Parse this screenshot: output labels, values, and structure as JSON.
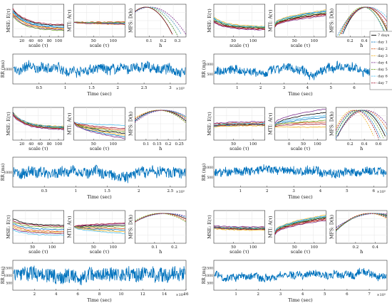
{
  "figure": {
    "legend": [
      "7 days",
      "day 1",
      "day 2",
      "day 3",
      "day 4",
      "day 5",
      "day 6",
      "day 7"
    ],
    "legend_colors": [
      "#000000",
      "#0072BD",
      "#D95319",
      "#EDB120",
      "#7E2F8E",
      "#77AC30",
      "#4DBEEE",
      "#A2142F"
    ],
    "rr_color": "#0072BD",
    "ylabels": {
      "mse": "MSE: E(τ)",
      "mti": "MTI: A(τ)",
      "mfs": "MFS: D(h)",
      "rr": "RR (ms)"
    },
    "xlabels": {
      "scale": "scale (τ)",
      "h": "h",
      "time": "Time (sec)"
    }
  },
  "chart_data": [
    {
      "panel": "top-left",
      "type": "line",
      "mse": {
        "xlim": [
          1,
          100
        ],
        "xticks": [
          "20",
          "40",
          "60",
          "80",
          "100"
        ],
        "y_start": [
          0.82,
          0.76,
          0.72,
          0.7,
          0.66,
          0.62,
          0.8,
          0.86
        ],
        "y_end": [
          0.35,
          0.3,
          0.27,
          0.25,
          0.22,
          0.2,
          0.32,
          0.38
        ]
      },
      "mti": {
        "xlim": [
          0,
          100
        ],
        "xticks": [
          "50",
          "100"
        ],
        "y_end": [
          0.43,
          0.4,
          0.46,
          0.38,
          0.42,
          0.44,
          0.41,
          0.39
        ]
      },
      "mfs": {
        "xlim": [
          0.05,
          0.38
        ],
        "xticks": [
          "0.1",
          "0.2",
          "0.3"
        ],
        "peak": [
          0.12,
          0.13,
          0.14,
          0.12,
          0.15,
          0.13,
          0.14,
          0.12
        ],
        "width": [
          0.09,
          0.1,
          0.11,
          0.09,
          0.12,
          0.1,
          0.11,
          0.09
        ],
        "dashed": true
      },
      "rr": {
        "xticks": [
          "0.5",
          "1",
          "1.5",
          "2",
          "2.5",
          "3"
        ],
        "xmax": 3.3,
        "exp": "×10⁵",
        "yticks": [
          "1000"
        ],
        "level": 0.5,
        "amp": 0.2
      }
    },
    {
      "panel": "top-right",
      "type": "line",
      "mse": {
        "xlim": [
          1,
          100
        ],
        "xticks": [
          "50",
          "100"
        ],
        "y_start": [
          0.5,
          0.56,
          0.46,
          0.6,
          0.44,
          0.52,
          0.58,
          0.48
        ],
        "y_end": [
          0.28,
          0.3,
          0.25,
          0.33,
          0.22,
          0.29,
          0.31,
          0.24
        ]
      },
      "mti": {
        "xlim": [
          0,
          100
        ],
        "xticks": [
          "50",
          "100"
        ],
        "y_start": [
          0.35,
          0.38,
          0.33,
          0.4,
          0.3,
          0.36,
          0.39,
          0.32
        ],
        "y_end": [
          0.72,
          0.78,
          0.68,
          0.82,
          0.65,
          0.75,
          0.8,
          0.7
        ]
      },
      "mfs": {
        "xlim": [
          0.1,
          0.65
        ],
        "xticks": [
          "0.2",
          "0.4",
          "0.6"
        ],
        "peak": [
          0.42,
          0.4,
          0.44,
          0.41,
          0.43,
          0.39,
          0.45,
          0.42
        ],
        "width": [
          0.13,
          0.12,
          0.15,
          0.14,
          0.16,
          0.13,
          0.17,
          0.14
        ],
        "dashed": true
      },
      "rr": {
        "xticks": [
          "1",
          "2",
          "3",
          "4",
          "5",
          "6",
          "7"
        ],
        "xmax": 7.4,
        "exp": "×10⁵",
        "yticks": [
          "1000",
          "500"
        ],
        "level": 0.45,
        "amp": 0.18
      }
    },
    {
      "panel": "middle-left",
      "type": "line",
      "mse": {
        "xlim": [
          1,
          100
        ],
        "xticks": [
          "20",
          "40",
          "60",
          "80",
          "100"
        ],
        "y_start": [
          0.85,
          0.8,
          0.78,
          0.82,
          0.75,
          0.8,
          0.83,
          0.79
        ],
        "y_end": [
          0.4,
          0.38,
          0.35,
          0.42,
          0.33,
          0.37,
          0.41,
          0.36
        ]
      },
      "mti": {
        "xlim": [
          0,
          100
        ],
        "xticks": [
          "50",
          "100"
        ],
        "y_start": [
          0.55,
          0.55,
          0.55,
          0.55,
          0.55,
          0.55,
          0.55,
          0.55
        ],
        "y_end": [
          0.2,
          0.1,
          0.3,
          0.15,
          0.05,
          0.25,
          0.45,
          0.35
        ]
      },
      "mfs": {
        "xlim": [
          0.04,
          0.28
        ],
        "xticks": [
          "0.1",
          "0.15",
          "0.2",
          "0.25"
        ],
        "peak": [
          0.16,
          0.17,
          0.15,
          0.16,
          0.18,
          0.15,
          0.17,
          0.16
        ],
        "width": [
          0.1,
          0.11,
          0.1,
          0.12,
          0.11,
          0.1,
          0.12,
          0.11
        ],
        "dashed": true
      },
      "rr": {
        "xticks": [
          "0.5",
          "1",
          "1.5",
          "2",
          "2.5"
        ],
        "xmax": 2.75,
        "exp": "×10⁵",
        "yticks": [
          "1000"
        ],
        "level": 0.5,
        "amp": 0.22
      }
    },
    {
      "panel": "middle-right",
      "type": "line",
      "mse": {
        "xlim": [
          1,
          100
        ],
        "xticks": [
          "50",
          "100"
        ],
        "y_start": [
          0.45,
          0.42,
          0.48,
          0.4,
          0.5,
          0.44,
          0.46,
          0.43
        ],
        "y_end": [
          0.5,
          0.46,
          0.53,
          0.44,
          0.56,
          0.48,
          0.51,
          0.47
        ]
      },
      "mti": {
        "xlim": [
          0,
          100
        ],
        "xticks": [
          "0",
          "50",
          "100"
        ],
        "y_start": [
          0.45,
          0.42,
          0.48,
          0.4,
          0.5,
          0.44,
          0.46,
          0.43
        ],
        "y_end": [
          0.85,
          0.7,
          0.55,
          0.4,
          0.95,
          0.6,
          0.75,
          0.5
        ]
      },
      "mfs": {
        "xlim": [
          0.05,
          0.65
        ],
        "xticks": [
          "0.2",
          "0.4",
          "0.6"
        ],
        "peak": [
          0.35,
          0.3,
          0.38,
          0.25,
          0.4,
          0.32,
          0.36,
          0.28
        ],
        "width": [
          0.15,
          0.14,
          0.17,
          0.13,
          0.18,
          0.15,
          0.16,
          0.14
        ],
        "dashed": true
      },
      "rr": {
        "xticks": [
          "1",
          "2",
          "3",
          "4",
          "5",
          "6"
        ],
        "xmax": 6.5,
        "exp": "×10⁵",
        "yticks": [
          "1000",
          "500"
        ],
        "level": 0.5,
        "amp": 0.18
      }
    },
    {
      "panel": "bottom-left",
      "type": "line",
      "mse": {
        "xlim": [
          1,
          100
        ],
        "xticks": [
          "50",
          "100"
        ],
        "y_start": [
          0.75,
          0.6,
          0.55,
          0.5,
          0.45,
          0.65,
          0.4,
          0.7
        ],
        "y_end": [
          0.55,
          0.42,
          0.36,
          0.32,
          0.3,
          0.48,
          0.25,
          0.52
        ]
      },
      "mti": {
        "xlim": [
          0,
          100
        ],
        "xticks": [
          "50",
          "100"
        ],
        "y_start": [
          0.5,
          0.5,
          0.5,
          0.5,
          0.5,
          0.5,
          0.5,
          0.5
        ],
        "y_end": [
          0.55,
          0.4,
          0.45,
          0.35,
          0.6,
          0.5,
          0.3,
          0.62
        ]
      },
      "mfs": {
        "xlim": [
          0.05,
          0.32
        ],
        "xticks": [
          "0.1",
          "0.2"
        ],
        "peak": [
          0.2,
          0.21,
          0.19,
          0.2,
          0.22,
          0.18,
          0.21,
          0.2
        ],
        "width": [
          0.14,
          0.15,
          0.13,
          0.14,
          0.16,
          0.13,
          0.15,
          0.14
        ],
        "dashed": true
      },
      "rr": {
        "xticks": [
          "2",
          "4",
          "6",
          "8",
          "10",
          "12",
          "14",
          "16"
        ],
        "xmax": 16,
        "exp": "×10⁴",
        "yticks": [
          "1500",
          "1000",
          "500"
        ],
        "level": 0.55,
        "amp": 0.3
      }
    },
    {
      "panel": "bottom-right",
      "type": "line",
      "mse": {
        "xlim": [
          1,
          100
        ],
        "xticks": [
          "50",
          "100"
        ],
        "y_start": [
          0.5,
          0.47,
          0.52,
          0.45,
          0.53,
          0.49,
          0.51,
          0.48
        ],
        "y_end": [
          0.45,
          0.42,
          0.48,
          0.4,
          0.5,
          0.44,
          0.47,
          0.43
        ]
      },
      "mti": {
        "xlim": [
          0,
          100
        ],
        "xticks": [
          "50",
          "100"
        ],
        "y_start": [
          0.3,
          0.33,
          0.28,
          0.35,
          0.26,
          0.31,
          0.34,
          0.29
        ],
        "y_end": [
          0.78,
          0.82,
          0.72,
          0.86,
          0.7,
          0.8,
          0.84,
          0.75
        ]
      },
      "mfs": {
        "xlim": [
          0.05,
          0.5
        ],
        "xticks": [
          "0.2",
          "0.4"
        ],
        "peak": [
          0.38,
          0.36,
          0.4,
          0.34,
          0.42,
          0.37,
          0.39,
          0.35
        ],
        "width": [
          0.22,
          0.2,
          0.25,
          0.19,
          0.27,
          0.21,
          0.24,
          0.2
        ],
        "dashed": true
      },
      "rr": {
        "xticks": [
          "1",
          "2",
          "3",
          "4",
          "5",
          "6",
          "7"
        ],
        "xmax": 7.8,
        "exp": "×10⁵",
        "yticks": [
          "1500",
          "1000",
          "500"
        ],
        "level": 0.5,
        "amp": 0.15
      }
    }
  ]
}
